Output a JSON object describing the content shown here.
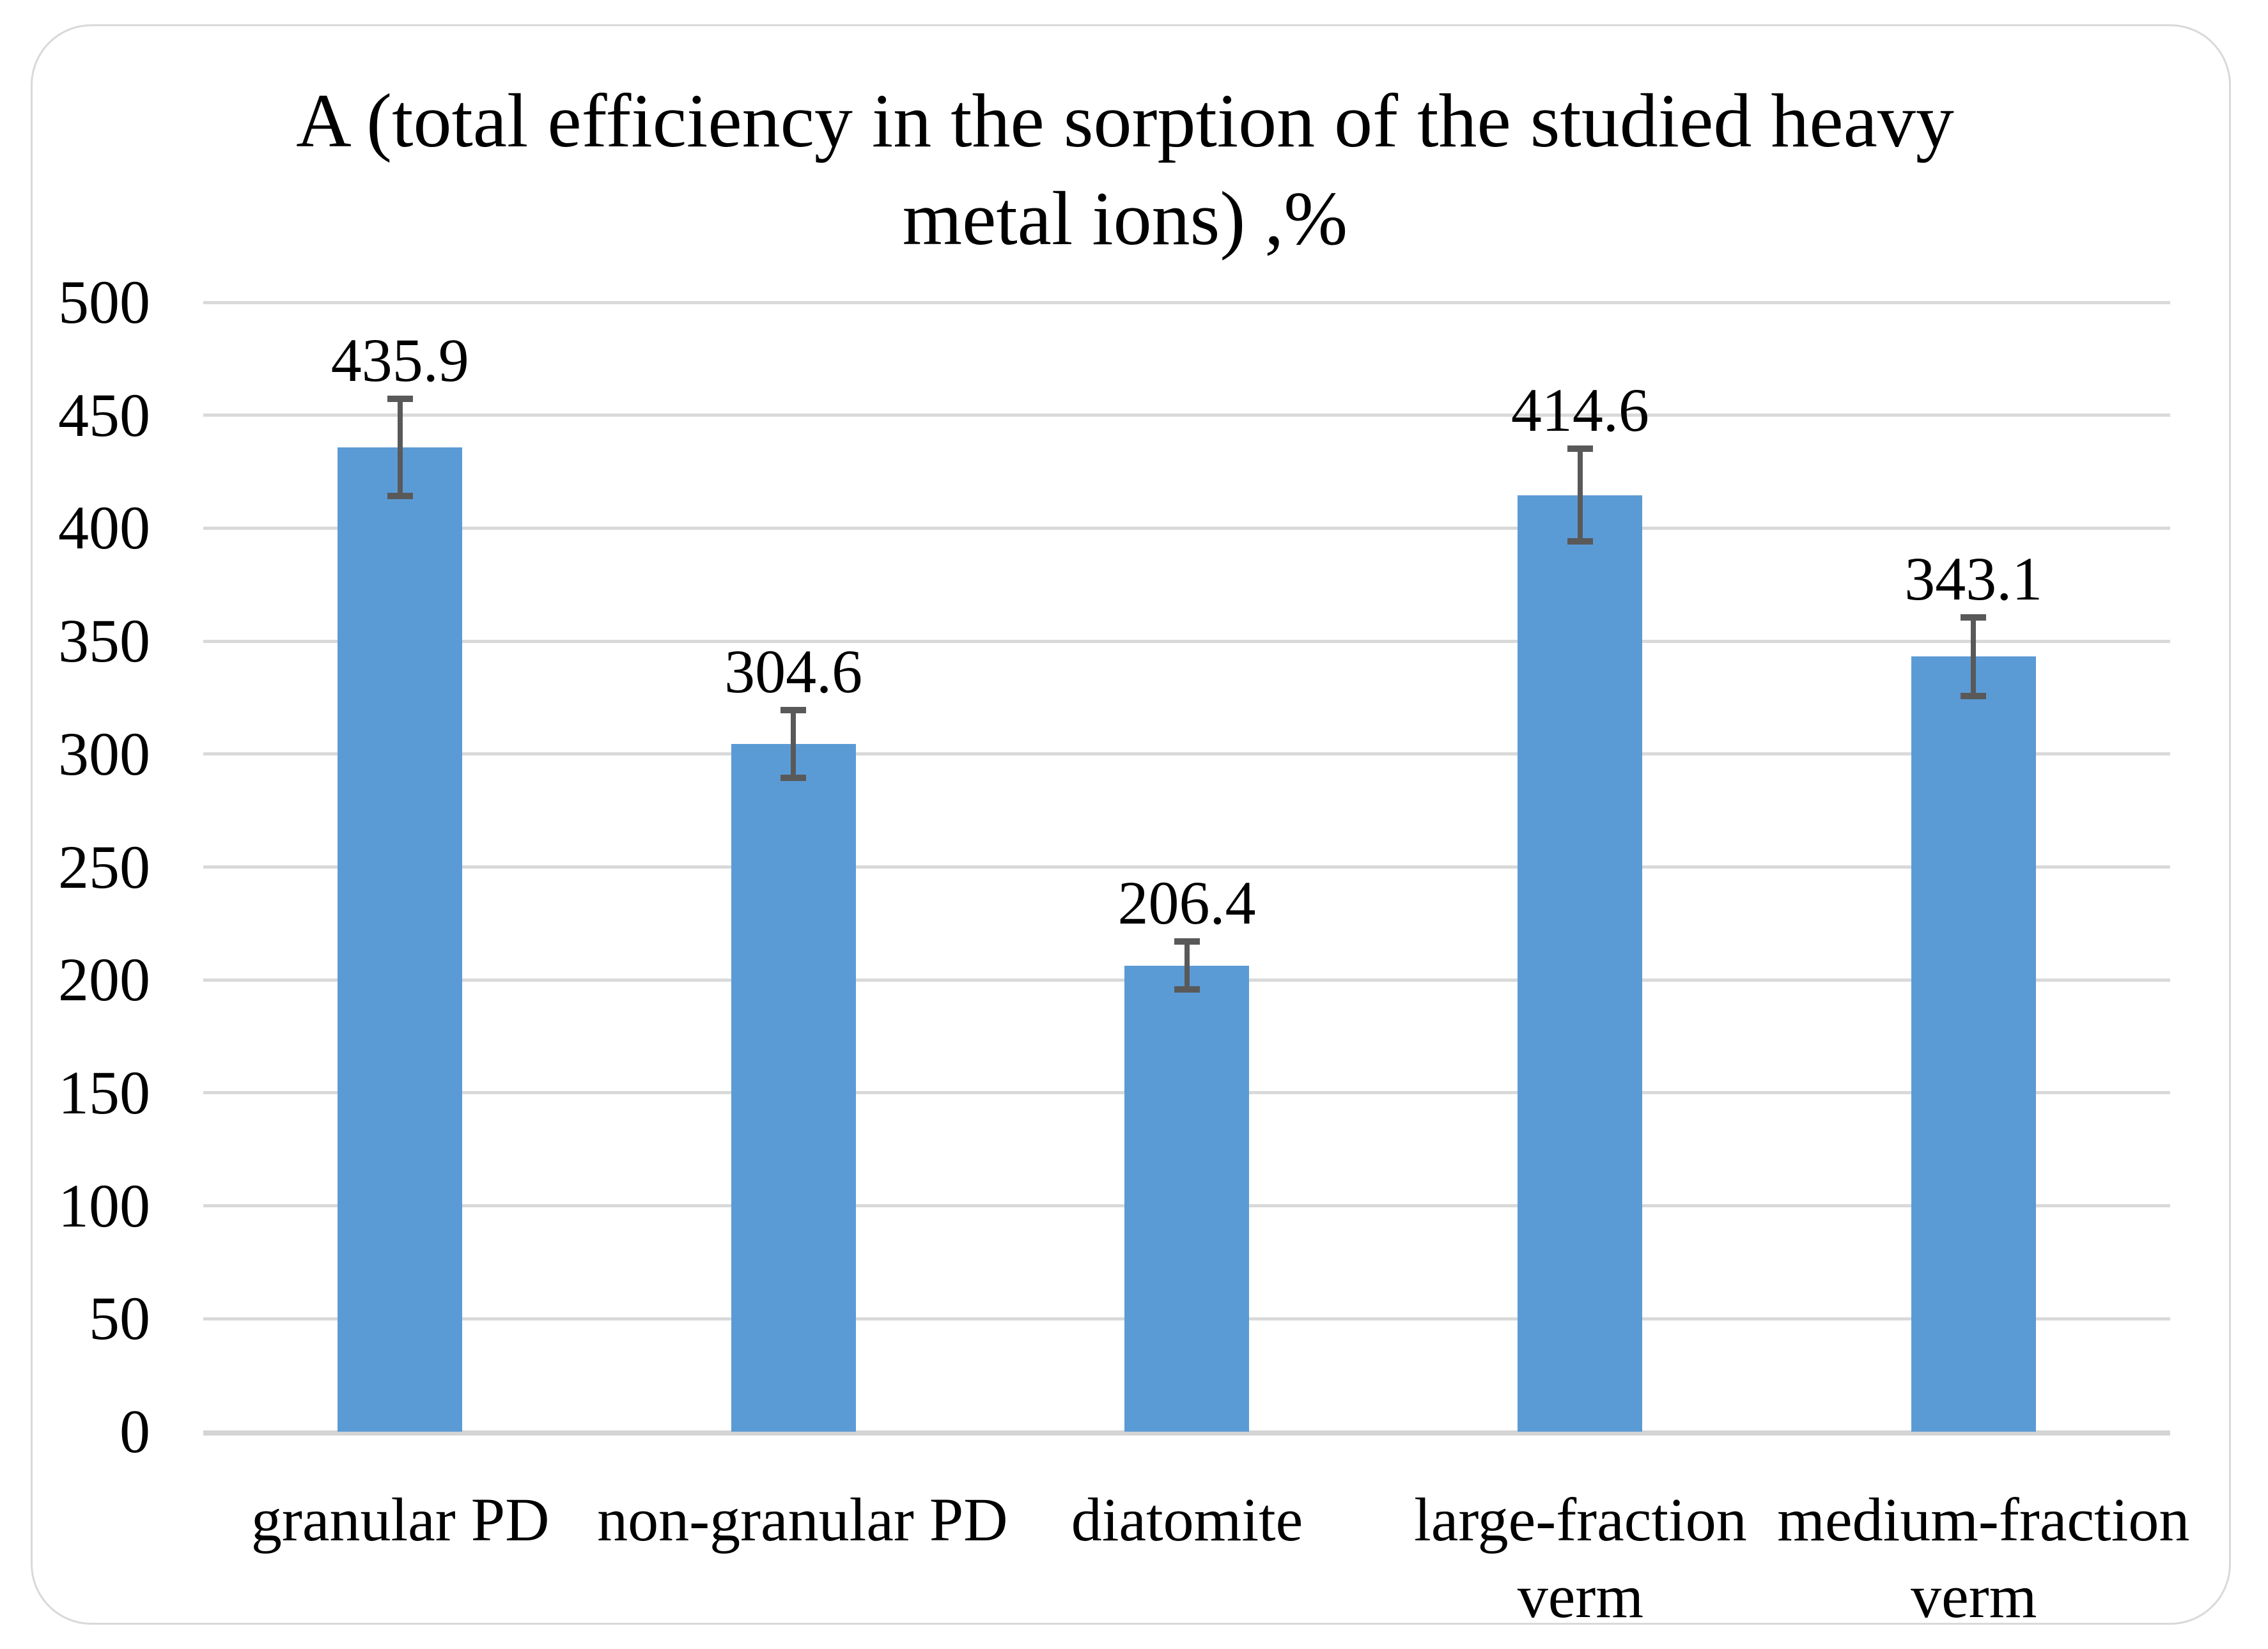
{
  "chart_data": {
    "type": "bar",
    "title": "A (total efficiency in the sorption of the studied heavy metal ions) ,%",
    "title_lines": [
      "A (total efficiency in the sorption of the studied heavy",
      "metal ions) ,%"
    ],
    "categories": [
      "granular PD",
      "non-granular PD",
      "diatomite",
      "large-fraction verm",
      "medium-fraction verm"
    ],
    "label_lines": [
      [
        "granular PD"
      ],
      [
        "non-granular PD"
      ],
      [
        "diatomite"
      ],
      [
        "large-fraction",
        "verm"
      ],
      [
        "medium-fraction",
        "verm"
      ]
    ],
    "values": [
      435.9,
      304.6,
      206.4,
      414.6,
      343.1
    ],
    "data_labels": [
      "435.9",
      "304.6",
      "206.4",
      "414.6",
      "343.1"
    ],
    "error_bars": [
      21.5,
      15,
      10.5,
      20.5,
      17.5
    ],
    "yticks": [
      0,
      50,
      100,
      150,
      200,
      250,
      300,
      350,
      400,
      450,
      500
    ],
    "ylim": [
      0,
      500
    ],
    "xlabel": "",
    "ylabel": "",
    "grid": true,
    "legend": "none",
    "bar_color": "#5B9BD5",
    "error_bar_color": "#595959",
    "gridline_color": "#D9D9D9",
    "border_color": "#D9D9D9",
    "text_color": "#000000"
  }
}
